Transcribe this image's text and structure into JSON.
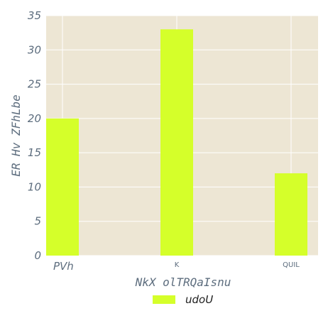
{
  "chart_data": {
    "type": "bar",
    "categories": [
      "PVh",
      "K",
      "QUIL"
    ],
    "series": [
      {
        "name": "udoU",
        "values": [
          20,
          33,
          12
        ]
      }
    ],
    "xlabel": "NkX olTRQaIsnu",
    "ylabel": "ER Hv ZFhLbe",
    "ylim": [
      0,
      35
    ],
    "yticks": [
      0,
      5,
      10,
      15,
      20,
      25,
      30,
      35
    ],
    "grid": true,
    "legend": "bottom-center",
    "colors": {
      "bar": "#d5ff2a",
      "plot_background": "#ede6d4",
      "grid": "#ffffff",
      "text": "#5d6d7e"
    }
  }
}
